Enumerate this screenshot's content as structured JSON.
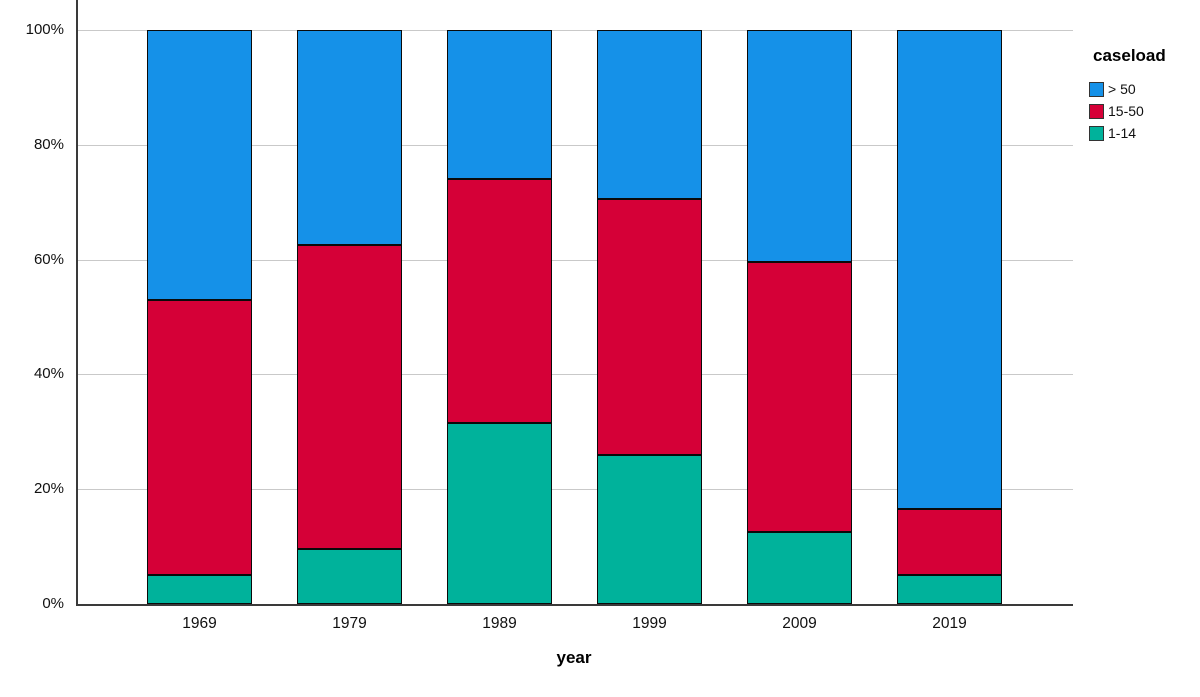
{
  "chart_data": {
    "type": "bar",
    "variant": "stacked-percent",
    "title": "",
    "xlabel": "year",
    "ylabel": "",
    "categories": [
      "1969",
      "1979",
      "1989",
      "1999",
      "2009",
      "2019"
    ],
    "series": [
      {
        "name": "1-14",
        "color": "#00b29b",
        "values": [
          5,
          9.5,
          31.5,
          26,
          12.5,
          5
        ]
      },
      {
        "name": "15-50",
        "color": "#d50037",
        "values": [
          48,
          53,
          42.5,
          44.5,
          47,
          11.5
        ]
      },
      {
        "name": "> 50",
        "color": "#1591e8",
        "values": [
          47,
          37.5,
          26,
          29.5,
          40.5,
          83.5
        ]
      }
    ],
    "stack_order_bottom_to_top": [
      "1-14",
      "15-50",
      "> 50"
    ],
    "ylim": [
      0,
      100
    ],
    "y_ticks": [
      {
        "value": 0,
        "label": "0%"
      },
      {
        "value": 20,
        "label": "20%"
      },
      {
        "value": 40,
        "label": "40%"
      },
      {
        "value": 60,
        "label": "60%"
      },
      {
        "value": 80,
        "label": "80%"
      },
      {
        "value": 100,
        "label": "100%"
      }
    ],
    "grid": true,
    "legend": {
      "title": "caseload",
      "position": "right",
      "items": [
        {
          "label": "> 50",
          "color": "#1591e8"
        },
        {
          "label": "15-50",
          "color": "#d50037"
        },
        {
          "label": "1-14",
          "color": "#00b29b"
        }
      ]
    },
    "colors": {
      "gridline": "#c9c9c9",
      "axis": "#3a3a3a",
      "bar_border": "#0a0a0a",
      "background": "#ffffff"
    }
  }
}
